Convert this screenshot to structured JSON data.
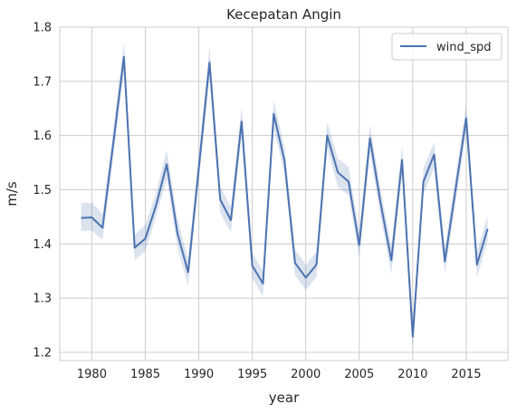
{
  "chart_data": {
    "type": "line",
    "title": "Kecepatan Angin",
    "xlabel": "year",
    "ylabel": "m/s",
    "xlim": [
      1977.0,
      2018.9
    ],
    "ylim": [
      1.185,
      1.8
    ],
    "xticks": [
      1980,
      1985,
      1990,
      1995,
      2000,
      2005,
      2010,
      2015
    ],
    "yticks": [
      1.2,
      1.3,
      1.4,
      1.5,
      1.6,
      1.7,
      1.8
    ],
    "grid": true,
    "legend_position": "top-right",
    "colors": {
      "line": "#4c72b0",
      "band": "#4c72b0",
      "grid": "#cccccc",
      "frame": "#cccccc"
    },
    "series": [
      {
        "name": "wind_spd",
        "x": [
          1979,
          1980,
          1981,
          1982,
          1983,
          1984,
          1985,
          1986,
          1987,
          1988,
          1989,
          1990,
          1991,
          1992,
          1993,
          1994,
          1995,
          1996,
          1997,
          1998,
          1999,
          2000,
          2001,
          2002,
          2003,
          2004,
          2005,
          2006,
          2007,
          2008,
          2009,
          2010,
          2011,
          2012,
          2013,
          2014,
          2015,
          2016,
          2017
        ],
        "values": [
          1.448,
          1.449,
          1.43,
          1.585,
          1.745,
          1.393,
          1.41,
          1.471,
          1.547,
          1.42,
          1.348,
          1.54,
          1.735,
          1.482,
          1.444,
          1.626,
          1.36,
          1.327,
          1.64,
          1.555,
          1.365,
          1.338,
          1.362,
          1.6,
          1.532,
          1.515,
          1.398,
          1.595,
          1.475,
          1.37,
          1.555,
          1.229,
          1.515,
          1.565,
          1.368,
          1.5,
          1.632,
          1.362,
          1.428
        ],
        "lower": [
          1.424,
          1.425,
          1.407,
          1.56,
          1.72,
          1.37,
          1.387,
          1.45,
          1.52,
          1.395,
          1.322,
          1.516,
          1.706,
          1.458,
          1.421,
          1.598,
          1.337,
          1.303,
          1.613,
          1.533,
          1.342,
          1.315,
          1.339,
          1.576,
          1.505,
          1.49,
          1.375,
          1.568,
          1.45,
          1.345,
          1.528,
          1.205,
          1.492,
          1.54,
          1.345,
          1.475,
          1.606,
          1.339,
          1.405
        ],
        "upper": [
          1.476,
          1.476,
          1.455,
          1.611,
          1.773,
          1.417,
          1.435,
          1.494,
          1.574,
          1.447,
          1.373,
          1.566,
          1.764,
          1.506,
          1.469,
          1.653,
          1.384,
          1.35,
          1.665,
          1.58,
          1.39,
          1.362,
          1.386,
          1.625,
          1.558,
          1.542,
          1.423,
          1.62,
          1.5,
          1.396,
          1.582,
          1.254,
          1.54,
          1.588,
          1.393,
          1.525,
          1.658,
          1.386,
          1.452
        ]
      }
    ]
  }
}
